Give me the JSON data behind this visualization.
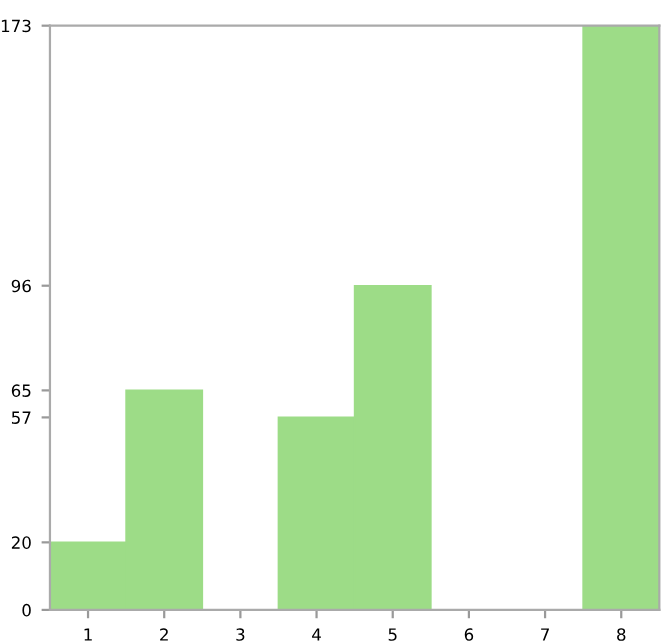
{
  "chart_data": {
    "type": "bar",
    "categories": [
      "1",
      "2",
      "3",
      "4",
      "5",
      "6",
      "7",
      "8"
    ],
    "values": [
      20,
      65,
      0,
      57,
      96,
      0,
      0,
      173
    ],
    "color": "#9ddc87",
    "ylim": [
      0,
      173
    ],
    "yticks": [
      0,
      20,
      57,
      65,
      96,
      173
    ],
    "grid": false
  }
}
